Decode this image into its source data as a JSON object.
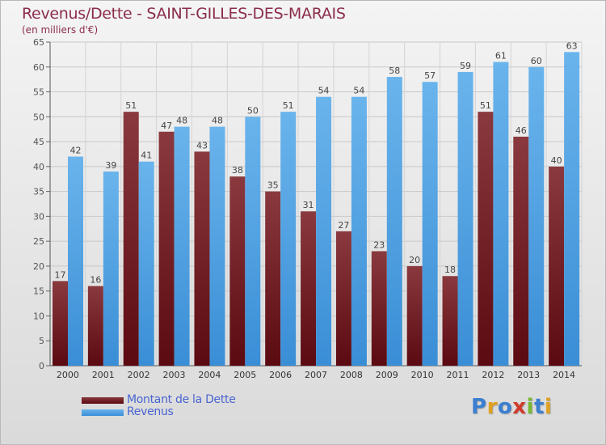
{
  "brand": {
    "text": "Proxiti",
    "letter_colors": [
      "#3a7fd0",
      "#e0a020",
      "#3a7fd0",
      "#d03a2a",
      "#78b832",
      "#3a7fd0",
      "#e0a020"
    ]
  },
  "colors": {
    "dette_top": "#8a3a3e",
    "dette_bottom": "#5a0a10",
    "revenus_top": "#6ab4ec",
    "revenus_bottom": "#3a8ed6",
    "title": "#8b2d4a",
    "legend_text": "#4a64d0"
  },
  "chart_data": {
    "type": "bar",
    "title": "Revenus/Dette - SAINT-GILLES-DES-MARAIS",
    "subtitle": "(en milliers d'€)",
    "categories": [
      "2000",
      "2001",
      "2002",
      "2003",
      "2004",
      "2005",
      "2006",
      "2007",
      "2008",
      "2009",
      "2010",
      "2011",
      "2012",
      "2013",
      "2014"
    ],
    "series": [
      {
        "name": "Montant de la Dette",
        "values": [
          17,
          16,
          51,
          47,
          43,
          38,
          35,
          31,
          27,
          23,
          20,
          18,
          51,
          46,
          40
        ]
      },
      {
        "name": "Revenus",
        "values": [
          42,
          39,
          41,
          48,
          48,
          50,
          51,
          54,
          54,
          58,
          57,
          59,
          61,
          60,
          63
        ]
      }
    ],
    "ylim": [
      0,
      65
    ],
    "yticks": [
      0,
      5,
      10,
      15,
      20,
      25,
      30,
      35,
      40,
      45,
      50,
      55,
      60,
      65
    ],
    "grid": true,
    "legend": "bottom-left"
  }
}
